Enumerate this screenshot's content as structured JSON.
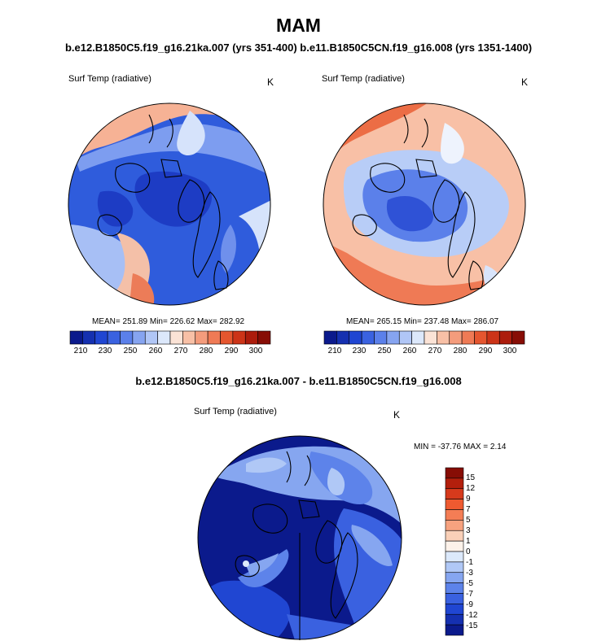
{
  "title": "MAM",
  "subtitle": "b.e12.B1850C5.f19_g16.21ka.007 (yrs 351-400) b.e11.B1850C5CN.f19_g16.008 (yrs 1351-1400)",
  "panels": [
    {
      "variable": "Surf Temp (radiative)",
      "unit": "K",
      "stats": "MEAN= 251.89  Min= 226.62  Max= 282.92",
      "field": "cold"
    },
    {
      "variable": "Surf Temp (radiative)",
      "unit": "K",
      "stats": "MEAN= 265.15  Min= 237.48  Max= 286.07",
      "field": "warm"
    }
  ],
  "colorbar": {
    "labels": [
      "210",
      "230",
      "250",
      "260",
      "270",
      "280",
      "290",
      "300"
    ],
    "colors": [
      "#0b1a8c",
      "#1530b0",
      "#2046d2",
      "#3a62e0",
      "#5b80ea",
      "#86a4f0",
      "#b0c6f6",
      "#dce8fb",
      "#fbe3d6",
      "#f8c0a6",
      "#f49c7c",
      "#ef7a55",
      "#e5562f",
      "#cc3418",
      "#ac1c0c",
      "#870d05"
    ]
  },
  "difference": {
    "title": "b.e12.B1850C5.f19_g16.21ka.007 - b.e11.B1850C5CN.f19_g16.008",
    "variable": "Surf Temp (radiative)",
    "unit": "K",
    "stats": "MIN = -37.76 MAX =   2.14",
    "legend_labels": [
      "15",
      "12",
      "9",
      "7",
      "5",
      "3",
      "1",
      "0",
      "-1",
      "-3",
      "-5",
      "-7",
      "-9",
      "-12",
      "-15"
    ],
    "legend_colors": [
      "#870d05",
      "#b31f0c",
      "#d63a1c",
      "#ee5a30",
      "#f47d55",
      "#f7a27f",
      "#fad0b8",
      "#fdf2ea",
      "#dce9fb",
      "#b0c8f6",
      "#86a6f0",
      "#5d83ea",
      "#3a61e0",
      "#2046d2",
      "#1530b0",
      "#0b1a8c"
    ]
  }
}
